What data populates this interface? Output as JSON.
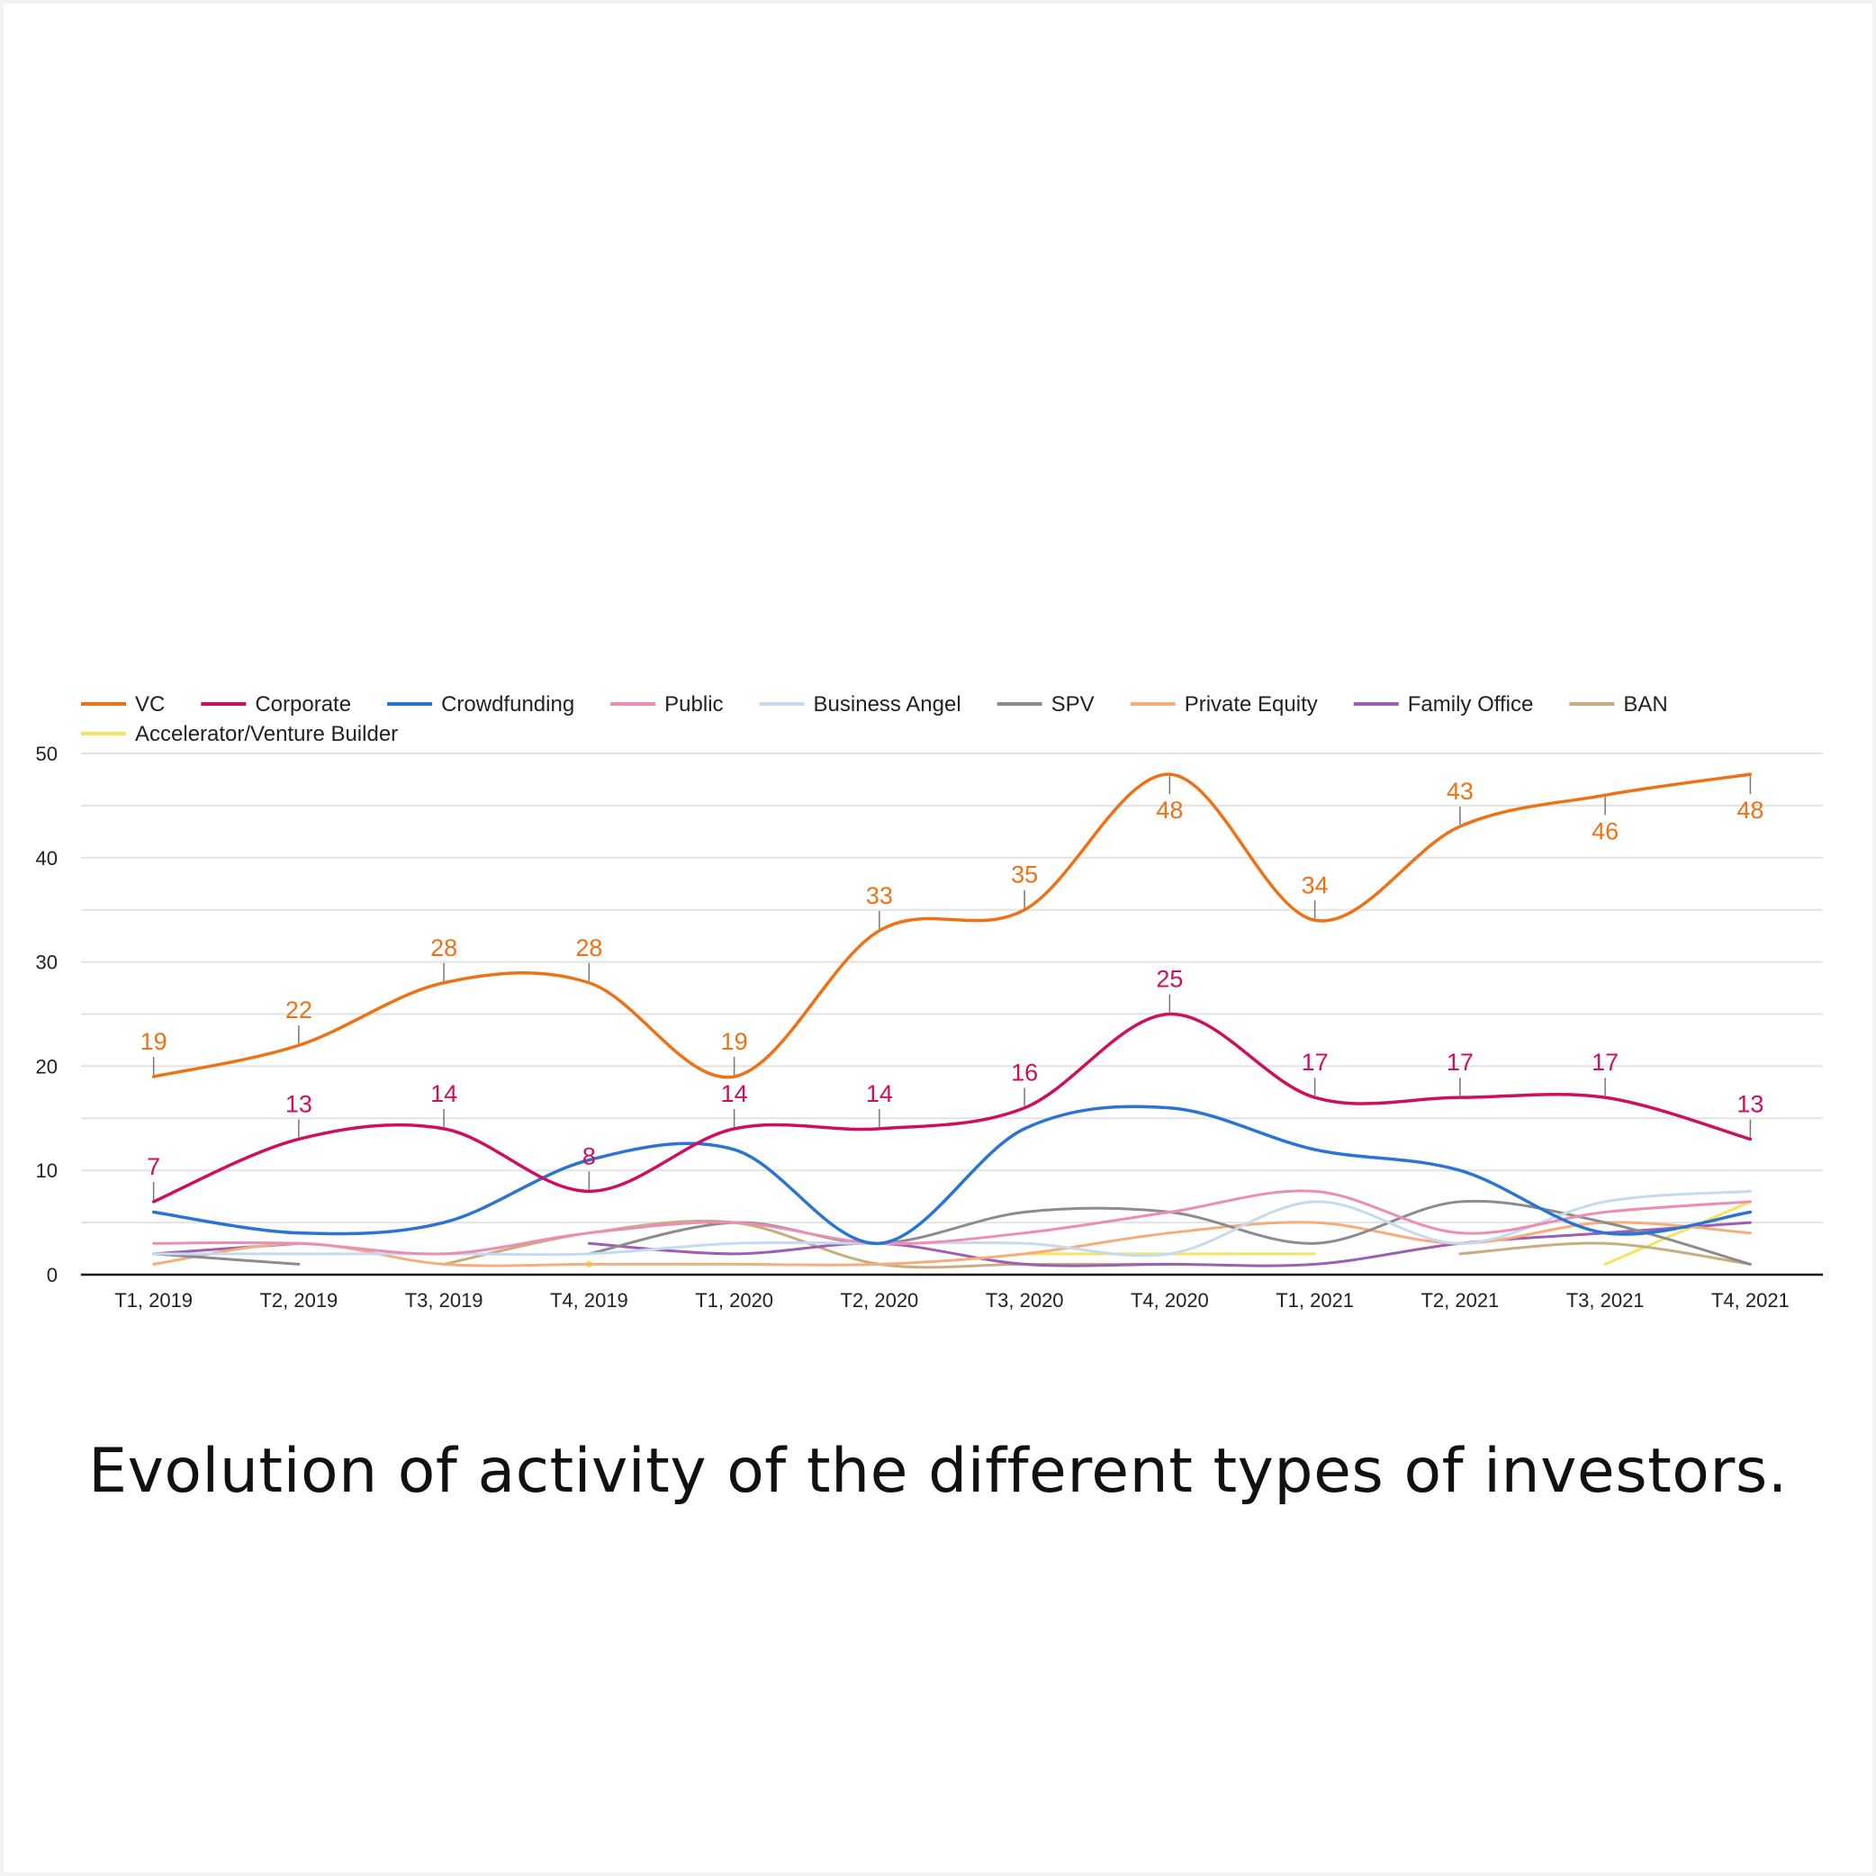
{
  "caption": "Evolution of activity of the different types of investors.",
  "chart_data": {
    "type": "line",
    "categories": [
      "T1, 2019",
      "T2, 2019",
      "T3, 2019",
      "T4, 2019",
      "T1, 2020",
      "T2, 2020",
      "T3, 2020",
      "T4, 2020",
      "T1, 2021",
      "T2, 2021",
      "T3, 2021",
      "T4, 2021"
    ],
    "ylim": [
      0,
      50
    ],
    "yticks": [
      0,
      10,
      20,
      30,
      40,
      50
    ],
    "grid": true,
    "legend_position": "top-left",
    "series": [
      {
        "name": "VC",
        "color": "#ee7215",
        "labels": true,
        "values": [
          19,
          22,
          28,
          28,
          19,
          33,
          35,
          48,
          34,
          43,
          46,
          48
        ]
      },
      {
        "name": "Corporate",
        "color": "#cf0e5f",
        "labels": true,
        "values": [
          7,
          13,
          14,
          8,
          14,
          14,
          16,
          25,
          17,
          17,
          17,
          13
        ]
      },
      {
        "name": "Crowdfunding",
        "color": "#2a74d3",
        "values": [
          6,
          4,
          5,
          11,
          12,
          3,
          14,
          16,
          12,
          10,
          4,
          6
        ]
      },
      {
        "name": "Public",
        "color": "#ec8db4",
        "values": [
          3,
          3,
          2,
          4,
          5,
          3,
          4,
          6,
          8,
          4,
          6,
          7
        ]
      },
      {
        "name": "Business Angel",
        "color": "#c5daf0",
        "values": [
          2,
          2,
          2,
          2,
          3,
          3,
          3,
          2,
          7,
          3,
          7,
          8
        ]
      },
      {
        "name": "SPV",
        "color": "#8c8c8c",
        "values": [
          2,
          1,
          null,
          2,
          5,
          3,
          6,
          6,
          3,
          7,
          5,
          1
        ]
      },
      {
        "name": "Private Equity",
        "color": "#f6ad7c",
        "values": [
          1,
          3,
          1,
          1,
          1,
          1,
          2,
          4,
          5,
          3,
          5,
          4
        ]
      },
      {
        "name": "Family Office",
        "color": "#9b5fb4",
        "values": [
          2,
          3,
          null,
          3,
          2,
          3,
          1,
          1,
          1,
          3,
          4,
          5
        ]
      },
      {
        "name": "BAN",
        "color": "#c8ae7f",
        "values": [
          null,
          null,
          1,
          4,
          5,
          1,
          1,
          1,
          null,
          2,
          3,
          1
        ]
      },
      {
        "name": "Accelerator/Venture Builder",
        "color": "#f5e461",
        "values": [
          null,
          null,
          null,
          1,
          null,
          null,
          2,
          2,
          2,
          null,
          1,
          7
        ]
      }
    ]
  }
}
